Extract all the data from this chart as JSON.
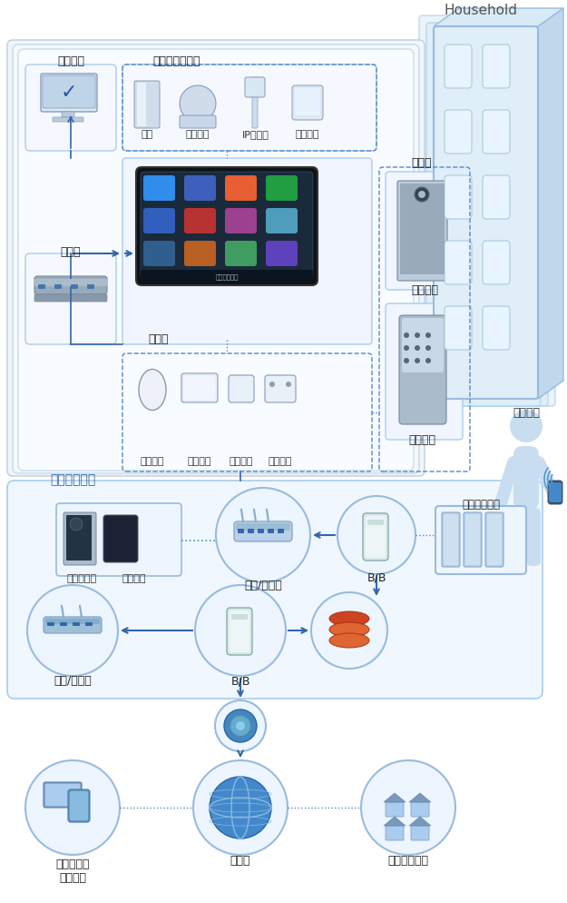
{
  "bg_color": "#ffffff",
  "text_household": "Household",
  "text_public": "小区公共区域",
  "text_pc": "个人电脑",
  "text_hub": "集线器",
  "text_controller": "控制器",
  "text_security": "安防报警探测器",
  "text_door_sensor": "门磁",
  "text_motion": "移动探测",
  "text_ip_cam": "IP摄像头",
  "text_dynamic": "动态侅测",
  "text_gas": "燃气渗漏",
  "text_ac": "空调控制",
  "text_light": "智能照明",
  "text_socket": "节能插座",
  "text_doorbell": "可视门铃",
  "text_resident_door": "住户门",
  "text_smart_lock": "智能门锁",
  "text_remote": "远程控制",
  "text_public_hall": "公用门厅机",
  "text_admin": "管理员机",
  "text_gateway1": "网关/交换机",
  "text_bb1": "B/B",
  "text_community_servers": "小区服务器群",
  "text_gateway2": "网关/交换机",
  "text_bb2": "B/B",
  "text_personal_device": "个人电脑或\n智能手机",
  "text_internet": "因特网",
  "text_smart_home": "智能家居门户",
  "colors": {
    "box_face": "#edf5ff",
    "box_edge": "#aaccee",
    "circle_face": "#edf5ff",
    "circle_edge": "#99bbdd",
    "arrow": "#3366aa",
    "dot_line": "#5588cc",
    "text_dark": "#222222",
    "text_blue": "#3366aa",
    "building_face": "#c8dff0",
    "building_edge": "#99bbdd",
    "win_face": "#e8f4ff",
    "win_edge": "#aaccdd",
    "person_face": "#c8ddf0",
    "person_edge": "#99bbdd",
    "pad_face": "#111111",
    "screen_face": "#1a2a3a",
    "public_face": "#f0f7ff",
    "household_face": "#eaf3fb"
  }
}
